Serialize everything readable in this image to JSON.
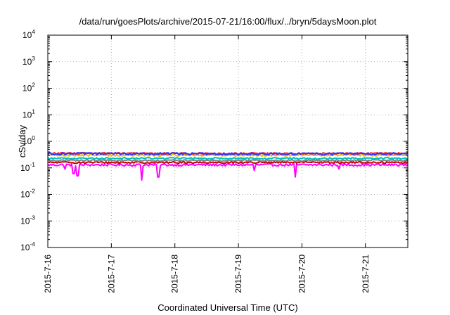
{
  "chart_data": {
    "type": "line",
    "title": "/data/run/goesPlots/archive/2015-07-21/16:00/flux/../bryn/5daysMoon.plot",
    "xlabel": "Coordinated Universal Time (UTC)",
    "ylabel": "cSv/day",
    "yscale": "log",
    "ylim": [
      0.0001,
      10000
    ],
    "xlim": [
      "2015-07-16 00:00",
      "2015-07-21 16:00"
    ],
    "grid": true,
    "legend": "none",
    "x_ticks": [
      "2015-7-16",
      "2015-7-17",
      "2015-7-18",
      "2015-7-19",
      "2015-7-20",
      "2015-7-21"
    ],
    "y_ticks": [
      {
        "base": "10",
        "exp": "4",
        "value": 10000
      },
      {
        "base": "10",
        "exp": "3",
        "value": 1000
      },
      {
        "base": "10",
        "exp": "2",
        "value": 100
      },
      {
        "base": "10",
        "exp": "1",
        "value": 10
      },
      {
        "base": "10",
        "exp": "0",
        "value": 1
      },
      {
        "base": "10",
        "exp": "-1",
        "value": 0.1
      },
      {
        "base": "10",
        "exp": "-2",
        "value": 0.01
      },
      {
        "base": "10",
        "exp": "-3",
        "value": 0.001
      },
      {
        "base": "10",
        "exp": "-4",
        "value": 0.0001
      }
    ],
    "sample_hours": 0.5,
    "series": [
      {
        "color": "#ff00ff",
        "base": 0.13,
        "noise": 0.1,
        "dips": [
          {
            "hour": 6.5,
            "value": 0.09
          },
          {
            "hour": 9.8,
            "value": 0.06
          },
          {
            "hour": 11.2,
            "value": 0.05
          },
          {
            "hour": 35.5,
            "value": 0.035
          },
          {
            "hour": 41.8,
            "value": 0.045
          },
          {
            "hour": 78.0,
            "value": 0.08
          },
          {
            "hour": 93.5,
            "value": 0.045
          },
          {
            "hour": 110.0,
            "value": 0.09
          }
        ]
      },
      {
        "color": "#c00000",
        "base": 0.16,
        "noise": 0.08,
        "dips": []
      },
      {
        "color": "#808080",
        "base": 0.19,
        "noise": 0.07,
        "dips": []
      },
      {
        "color": "#00bfbf",
        "base": 0.23,
        "noise": 0.07,
        "dips": []
      },
      {
        "color": "#e8c000",
        "base": 0.3,
        "noise": 0.08,
        "dips": []
      },
      {
        "color": "#ff3030",
        "base": 0.35,
        "noise": 0.09,
        "dips": []
      },
      {
        "color": "#3030ff",
        "base": 0.34,
        "noise": 0.1,
        "dips": []
      }
    ]
  }
}
